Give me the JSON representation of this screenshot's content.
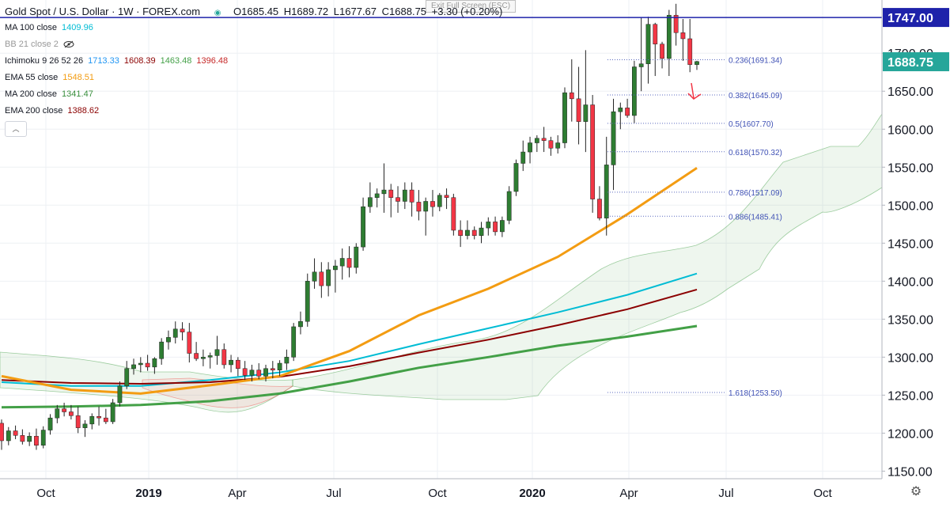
{
  "header": {
    "symbol": "Gold Spot / U.S. Dollar · 1W · FOREX.com",
    "open": "O1685.45",
    "high": "H1689.72",
    "low": "L1677.67",
    "close": "C1688.75",
    "change": "+3.30 (+0.20%)",
    "exit_fullscreen": "Exit Full Screen (ESC)"
  },
  "indicators": [
    {
      "label": "MA 100 close",
      "values": [
        {
          "v": "1409.96",
          "color": "#00bcd4"
        }
      ]
    },
    {
      "label": "BB 21 close 2",
      "values": [],
      "hidden": true
    },
    {
      "label": "Ichimoku 9 26 52 26",
      "values": [
        {
          "v": "1713.33",
          "color": "#2196f3"
        },
        {
          "v": "1608.39",
          "color": "#8b0000"
        },
        {
          "v": "1463.48",
          "color": "#43a047"
        },
        {
          "v": "1396.48",
          "color": "#c62828"
        }
      ]
    },
    {
      "label": "EMA 55 close",
      "values": [
        {
          "v": "1548.51",
          "color": "#f39c12"
        }
      ]
    },
    {
      "label": "MA 200 close",
      "values": [
        {
          "v": "1341.47",
          "color": "#388e3c"
        }
      ]
    },
    {
      "label": "EMA 200 close",
      "values": [
        {
          "v": "1388.62",
          "color": "#8b0000"
        }
      ]
    }
  ],
  "chart_data": {
    "type": "candlestick",
    "title": "Gold Spot / U.S. Dollar · 1W · FOREX.com",
    "ylim": [
      1140,
      1770
    ],
    "y_ticks": [
      1150,
      1200,
      1250,
      1300,
      1350,
      1400,
      1450,
      1500,
      1550,
      1600,
      1650,
      1700
    ],
    "x_tick_labels": [
      "Oct",
      "2019",
      "Apr",
      "Jul",
      "Oct",
      "2020",
      "Apr",
      "Jul",
      "Oct"
    ],
    "price_lines": [
      {
        "label": "1747.00",
        "value": 1747.0,
        "color": "#1e22aa"
      },
      {
        "label": "1688.75",
        "value": 1688.75,
        "color": "#26a69a"
      }
    ],
    "fibonacci": [
      {
        "label": "0.236(1691.34)",
        "value": 1691.34
      },
      {
        "label": "0.382(1645.09)",
        "value": 1645.09
      },
      {
        "label": "0.5(1607.70)",
        "value": 1607.7
      },
      {
        "label": "0.618(1570.32)",
        "value": 1570.32
      },
      {
        "label": "0.786(1517.09)",
        "value": 1517.09
      },
      {
        "label": "0.886(1485.41)",
        "value": 1485.41
      },
      {
        "label": "1.618(1253.50)",
        "value": 1253.5
      }
    ],
    "candles": [
      [
        1213,
        1218,
        1178,
        1190
      ],
      [
        1190,
        1208,
        1184,
        1203
      ],
      [
        1203,
        1210,
        1192,
        1197
      ],
      [
        1197,
        1205,
        1185,
        1189
      ],
      [
        1189,
        1201,
        1183,
        1196
      ],
      [
        1196,
        1206,
        1178,
        1184
      ],
      [
        1184,
        1209,
        1180,
        1204
      ],
      [
        1204,
        1225,
        1198,
        1220
      ],
      [
        1220,
        1237,
        1213,
        1232
      ],
      [
        1232,
        1240,
        1222,
        1228
      ],
      [
        1228,
        1237,
        1218,
        1223
      ],
      [
        1223,
        1235,
        1200,
        1207
      ],
      [
        1207,
        1217,
        1195,
        1212
      ],
      [
        1212,
        1226,
        1205,
        1222
      ],
      [
        1222,
        1235,
        1210,
        1220
      ],
      [
        1220,
        1232,
        1212,
        1215
      ],
      [
        1215,
        1245,
        1212,
        1240
      ],
      [
        1240,
        1268,
        1235,
        1262
      ],
      [
        1262,
        1295,
        1258,
        1285
      ],
      [
        1285,
        1298,
        1277,
        1290
      ],
      [
        1290,
        1300,
        1280,
        1292
      ],
      [
        1292,
        1303,
        1282,
        1287
      ],
      [
        1287,
        1300,
        1278,
        1298
      ],
      [
        1298,
        1325,
        1290,
        1320
      ],
      [
        1320,
        1335,
        1310,
        1326
      ],
      [
        1326,
        1347,
        1318,
        1337
      ],
      [
        1337,
        1346,
        1322,
        1333
      ],
      [
        1333,
        1345,
        1293,
        1305
      ],
      [
        1305,
        1320,
        1295,
        1298
      ],
      [
        1298,
        1310,
        1288,
        1300
      ],
      [
        1300,
        1306,
        1285,
        1302
      ],
      [
        1302,
        1328,
        1290,
        1310
      ],
      [
        1310,
        1318,
        1285,
        1290
      ],
      [
        1290,
        1303,
        1280,
        1296
      ],
      [
        1296,
        1300,
        1275,
        1285
      ],
      [
        1285,
        1295,
        1270,
        1276
      ],
      [
        1276,
        1290,
        1268,
        1283
      ],
      [
        1283,
        1292,
        1271,
        1275
      ],
      [
        1275,
        1290,
        1268,
        1285
      ],
      [
        1285,
        1295,
        1272,
        1283
      ],
      [
        1283,
        1296,
        1275,
        1292
      ],
      [
        1292,
        1310,
        1283,
        1300
      ],
      [
        1300,
        1345,
        1295,
        1340
      ],
      [
        1340,
        1360,
        1330,
        1347
      ],
      [
        1347,
        1410,
        1340,
        1400
      ],
      [
        1400,
        1430,
        1390,
        1412
      ],
      [
        1412,
        1425,
        1378,
        1394
      ],
      [
        1394,
        1425,
        1380,
        1415
      ],
      [
        1415,
        1428,
        1385,
        1420
      ],
      [
        1420,
        1443,
        1402,
        1430
      ],
      [
        1430,
        1446,
        1405,
        1418
      ],
      [
        1418,
        1450,
        1410,
        1445
      ],
      [
        1445,
        1510,
        1440,
        1498
      ],
      [
        1498,
        1530,
        1490,
        1510
      ],
      [
        1510,
        1522,
        1497,
        1515
      ],
      [
        1515,
        1555,
        1490,
        1520
      ],
      [
        1520,
        1528,
        1484,
        1510
      ],
      [
        1510,
        1525,
        1490,
        1505
      ],
      [
        1505,
        1530,
        1495,
        1520
      ],
      [
        1520,
        1530,
        1485,
        1504
      ],
      [
        1504,
        1520,
        1480,
        1492
      ],
      [
        1492,
        1510,
        1460,
        1505
      ],
      [
        1505,
        1520,
        1485,
        1498
      ],
      [
        1498,
        1516,
        1492,
        1513
      ],
      [
        1513,
        1522,
        1495,
        1510
      ],
      [
        1510,
        1515,
        1460,
        1467
      ],
      [
        1467,
        1480,
        1445,
        1460
      ],
      [
        1460,
        1480,
        1455,
        1467
      ],
      [
        1467,
        1472,
        1455,
        1460
      ],
      [
        1460,
        1478,
        1450,
        1470
      ],
      [
        1470,
        1484,
        1460,
        1478
      ],
      [
        1478,
        1485,
        1460,
        1465
      ],
      [
        1465,
        1485,
        1458,
        1480
      ],
      [
        1480,
        1525,
        1475,
        1518
      ],
      [
        1518,
        1560,
        1512,
        1555
      ],
      [
        1555,
        1585,
        1545,
        1570
      ],
      [
        1570,
        1590,
        1555,
        1582
      ],
      [
        1582,
        1592,
        1570,
        1588
      ],
      [
        1588,
        1603,
        1570,
        1585
      ],
      [
        1585,
        1590,
        1565,
        1575
      ],
      [
        1575,
        1592,
        1568,
        1582
      ],
      [
        1582,
        1655,
        1575,
        1648
      ],
      [
        1648,
        1692,
        1610,
        1640
      ],
      [
        1640,
        1682,
        1580,
        1610
      ],
      [
        1610,
        1704,
        1570,
        1632
      ],
      [
        1632,
        1645,
        1490,
        1508
      ],
      [
        1508,
        1525,
        1480,
        1483
      ],
      [
        1483,
        1590,
        1460,
        1553
      ],
      [
        1553,
        1640,
        1520,
        1623
      ],
      [
        1623,
        1635,
        1600,
        1628
      ],
      [
        1628,
        1640,
        1615,
        1618
      ],
      [
        1618,
        1690,
        1608,
        1682
      ],
      [
        1682,
        1747,
        1650,
        1686
      ],
      [
        1686,
        1748,
        1660,
        1738
      ],
      [
        1738,
        1740,
        1670,
        1712
      ],
      [
        1712,
        1715,
        1680,
        1693
      ],
      [
        1693,
        1757,
        1670,
        1750
      ],
      [
        1750,
        1765,
        1710,
        1727
      ],
      [
        1727,
        1745,
        1690,
        1719
      ],
      [
        1719,
        1745,
        1675,
        1685
      ],
      [
        1685,
        1690,
        1678,
        1689
      ]
    ],
    "series": [
      {
        "name": "MA 100 close",
        "color": "#00bcd4",
        "x_range": [
          0,
          100
        ],
        "points": [
          [
            0,
            1267
          ],
          [
            10,
            1262
          ],
          [
            20,
            1262
          ],
          [
            30,
            1270
          ],
          [
            40,
            1280
          ],
          [
            50,
            1295
          ],
          [
            60,
            1317
          ],
          [
            70,
            1338
          ],
          [
            80,
            1359
          ],
          [
            90,
            1382
          ],
          [
            100,
            1410
          ]
        ]
      },
      {
        "name": "EMA 200 close",
        "color": "#8b0000",
        "x_range": [
          0,
          100
        ],
        "points": [
          [
            0,
            1270
          ],
          [
            10,
            1266
          ],
          [
            20,
            1265
          ],
          [
            30,
            1267
          ],
          [
            40,
            1274
          ],
          [
            50,
            1288
          ],
          [
            60,
            1306
          ],
          [
            70,
            1323
          ],
          [
            80,
            1342
          ],
          [
            90,
            1363
          ],
          [
            100,
            1389
          ]
        ]
      },
      {
        "name": "MA 200 close",
        "color": "#43a047",
        "x_range": [
          0,
          100
        ],
        "points": [
          [
            0,
            1234
          ],
          [
            10,
            1235
          ],
          [
            20,
            1237
          ],
          [
            30,
            1242
          ],
          [
            40,
            1252
          ],
          [
            50,
            1268
          ],
          [
            60,
            1286
          ],
          [
            70,
            1300
          ],
          [
            80,
            1315
          ],
          [
            90,
            1327
          ],
          [
            100,
            1341
          ]
        ]
      },
      {
        "name": "EMA 55 close",
        "color": "#f39c12",
        "x_range": [
          0,
          100
        ],
        "points": [
          [
            0,
            1275
          ],
          [
            10,
            1257
          ],
          [
            20,
            1252
          ],
          [
            30,
            1263
          ],
          [
            40,
            1275
          ],
          [
            50,
            1308
          ],
          [
            60,
            1355
          ],
          [
            70,
            1390
          ],
          [
            80,
            1432
          ],
          [
            90,
            1488
          ],
          [
            100,
            1549
          ]
        ]
      }
    ]
  }
}
